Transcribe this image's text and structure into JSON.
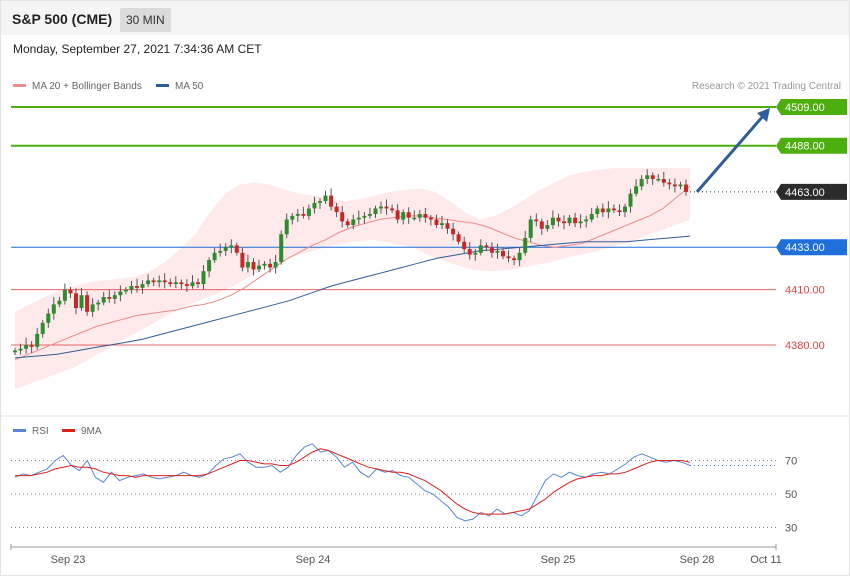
{
  "header": {
    "instrument": "S&P 500 (CME)",
    "timeframe": "30 MIN",
    "datetime": "Monday, September 27, 2021 7:34:36 AM CET"
  },
  "legend": {
    "main": [
      {
        "label": "MA 20 + Bollinger Bands",
        "color": "#f28b8b"
      },
      {
        "label": "MA 50",
        "color": "#2f5d9a"
      }
    ],
    "rsi": [
      {
        "label": "RSI",
        "color": "#5b86d6"
      },
      {
        "label": "9MA",
        "color": "#e0201b"
      }
    ],
    "copyright": "Research © 2021 Trading Central"
  },
  "chart_data": [
    {
      "type": "candlestick",
      "title": "S&P 500 (CME) 30 MIN",
      "x_ticks": [
        "Sep 23",
        "Sep 24",
        "Sep 25",
        "Sep 28",
        "Oct 11"
      ],
      "ylim": [
        4365,
        4520
      ],
      "levels": [
        {
          "value": 4509.0,
          "label": "4509.00",
          "color": "#4caf0e",
          "kind": "resistance"
        },
        {
          "value": 4488.0,
          "label": "4488.00",
          "color": "#4caf0e",
          "kind": "resistance"
        },
        {
          "value": 4463.0,
          "label": "4463.00",
          "color": "#2b2b2b",
          "kind": "last"
        },
        {
          "value": 4433.0,
          "label": "4433.00",
          "color": "#1e6fd9",
          "kind": "pivot"
        },
        {
          "value": 4410.0,
          "label": "4410.00",
          "color": "#e04545",
          "kind": "support"
        },
        {
          "value": 4380.0,
          "label": "4380.00",
          "color": "#e04545",
          "kind": "support"
        }
      ],
      "forecast_arrow": {
        "from": 4463,
        "to": 4509,
        "color": "#2f5d9a"
      },
      "close_series": [
        4377,
        4378,
        4380,
        4379,
        4386,
        4392,
        4397,
        4402,
        4404,
        4410,
        4408,
        4400,
        4407,
        4398,
        4402,
        4403,
        4406,
        4405,
        4407,
        4409,
        4410,
        4412,
        4411,
        4413,
        4415,
        4414,
        4415,
        4414,
        4413,
        4414,
        4413,
        4412,
        4414,
        4413,
        4420,
        4426,
        4430,
        4431,
        4433,
        4434,
        4430,
        4422,
        4425,
        4421,
        4423,
        4424,
        4422,
        4425,
        4440,
        4448,
        4450,
        4451,
        4450,
        4454,
        4457,
        4458,
        4461,
        4455,
        4452,
        4447,
        4445,
        4448,
        4449,
        4450,
        4451,
        4454,
        4455,
        4454,
        4453,
        4448,
        4452,
        4449,
        4449,
        4451,
        4449,
        4448,
        4445,
        4446,
        4443,
        4440,
        4436,
        4432,
        4429,
        4430,
        4434,
        4433,
        4430,
        4431,
        4428,
        4427,
        4426,
        4430,
        4438,
        4448,
        4447,
        4443,
        4445,
        4449,
        4447,
        4446,
        4449,
        4446,
        4447,
        4448,
        4451,
        4454,
        4452,
        4454,
        4453,
        4452,
        4455,
        4462,
        4466,
        4470,
        4472,
        4470,
        4470,
        4468,
        4467,
        4466,
        4467,
        4463
      ],
      "ma20": [
        4372,
        4375,
        4378,
        4381,
        4384,
        4387,
        4390,
        4392,
        4394,
        4396,
        4397,
        4398,
        4399,
        4401,
        4402,
        4404,
        4407,
        4411,
        4416,
        4421,
        4426,
        4430,
        4434,
        4437,
        4441,
        4444,
        4446,
        4448,
        4449,
        4450,
        4450,
        4449,
        4448,
        4447,
        4446,
        4444,
        4441,
        4438,
        4436,
        4434,
        4433,
        4434,
        4435,
        4438,
        4441,
        4444,
        4447,
        4450,
        4454,
        4460,
        4466
      ],
      "ma50": [
        4373,
        4374,
        4375,
        4377,
        4379,
        4381,
        4383,
        4386,
        4389,
        4392,
        4395,
        4398,
        4401,
        4404,
        4408,
        4412,
        4415,
        4418,
        4421,
        4424,
        4427,
        4429,
        4431,
        4432,
        4433,
        4434,
        4435,
        4436,
        4436,
        4436,
        4437,
        4438,
        4439
      ],
      "bb_upper": [
        4398,
        4402,
        4406,
        4410,
        4412,
        4414,
        4415,
        4416,
        4417,
        4420,
        4425,
        4432,
        4440,
        4452,
        4462,
        4467,
        4468,
        4467,
        4464,
        4462,
        4461,
        4459,
        4458,
        4459,
        4461,
        4463,
        4464,
        4465,
        4463,
        4458,
        4452,
        4448,
        4450,
        4454,
        4459,
        4464,
        4468,
        4472,
        4474,
        4475,
        4476,
        4476,
        4476,
        4476,
        4476,
        4476
      ],
      "bb_lower": [
        4356,
        4360,
        4364,
        4368,
        4374,
        4380,
        4386,
        4392,
        4398,
        4403,
        4407,
        4412,
        4418,
        4424,
        4428,
        4431,
        4434,
        4436,
        4437,
        4435,
        4433,
        4428,
        4424,
        4421,
        4420,
        4421,
        4423,
        4425,
        4428,
        4430,
        4433,
        4436,
        4440,
        4444,
        4448
      ]
    },
    {
      "type": "line",
      "title": "RSI",
      "ylim": [
        20,
        85
      ],
      "y_ticks": [
        30,
        50,
        70
      ],
      "series": [
        {
          "name": "RSI",
          "values": [
            60,
            62,
            61,
            63,
            65,
            70,
            73,
            67,
            64,
            70,
            60,
            57,
            63,
            58,
            60,
            61,
            62,
            60,
            59,
            60,
            61,
            63,
            61,
            60,
            62,
            67,
            71,
            72,
            74,
            69,
            66,
            66,
            67,
            63,
            66,
            73,
            78,
            80,
            75,
            76,
            72,
            66,
            69,
            63,
            60,
            65,
            63,
            64,
            61,
            60,
            56,
            52,
            50,
            46,
            42,
            36,
            34,
            35,
            39,
            37,
            41,
            38,
            39,
            37,
            40,
            49,
            58,
            62,
            60,
            63,
            61,
            60,
            62,
            63,
            62,
            65,
            68,
            72,
            74,
            72,
            70,
            69,
            70,
            69,
            67
          ]
        },
        {
          "name": "9MA",
          "values": [
            61,
            61,
            61,
            62,
            63,
            65,
            66,
            67,
            66,
            66,
            65,
            63,
            62,
            61,
            61,
            60,
            61,
            61,
            61,
            61,
            61,
            61,
            61,
            61,
            62,
            64,
            66,
            68,
            70,
            70,
            69,
            68,
            68,
            67,
            67,
            69,
            72,
            75,
            77,
            76,
            74,
            72,
            70,
            68,
            66,
            65,
            64,
            63,
            63,
            62,
            60,
            58,
            55,
            52,
            48,
            44,
            41,
            39,
            38,
            38,
            38,
            38,
            39,
            40,
            41,
            44,
            47,
            51,
            54,
            57,
            59,
            60,
            61,
            61,
            62,
            62,
            63,
            65,
            67,
            69,
            70,
            70,
            70,
            70,
            69
          ]
        }
      ]
    }
  ]
}
